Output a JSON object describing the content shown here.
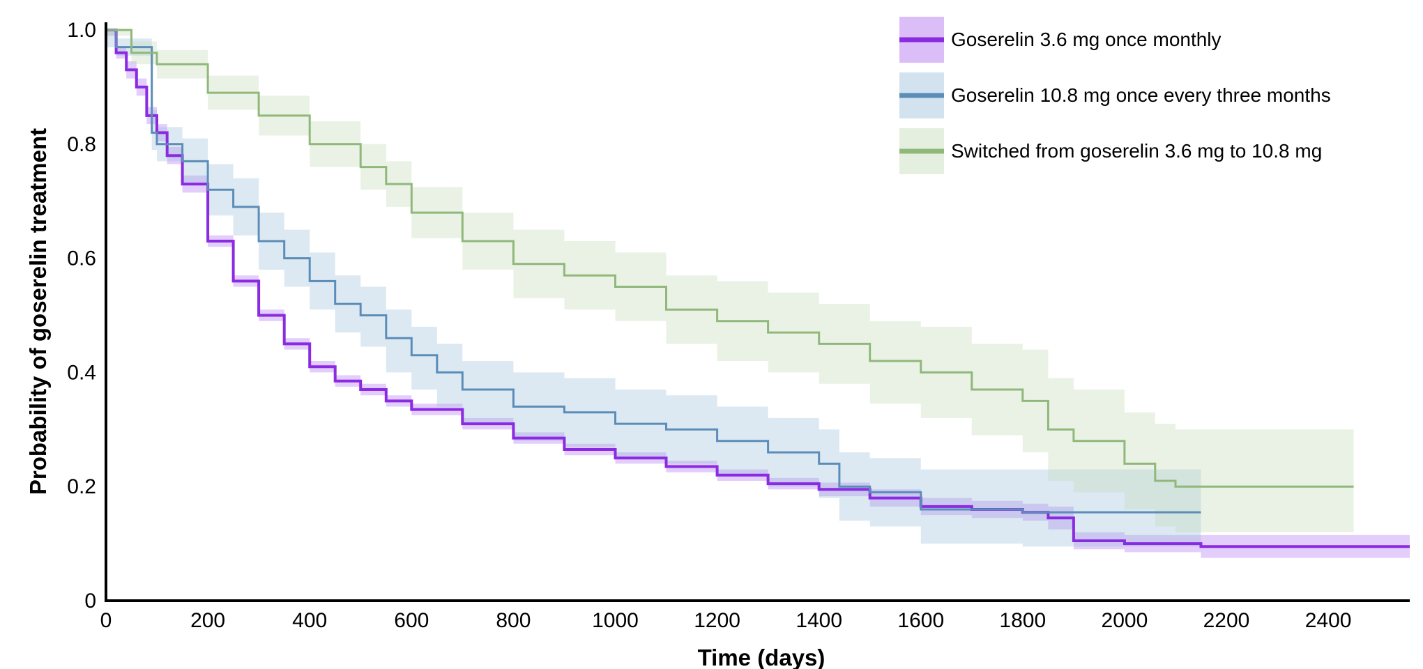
{
  "chart_data": {
    "type": "line",
    "title": "",
    "xlabel": "Time (days)",
    "ylabel": "Probability  of goserelin treatment",
    "xlim": [
      0,
      2560
    ],
    "ylim": [
      0,
      1.0
    ],
    "x_ticks": [
      "0",
      "200",
      "400",
      "600",
      "800",
      "1000",
      "1200",
      "1400",
      "1600",
      "1800",
      "2000",
      "2200",
      "2400"
    ],
    "y_ticks": [
      "0",
      "0.2",
      "0.4",
      "0.6",
      "0.8",
      "1.0"
    ],
    "grid": false,
    "legend_position": "top-right",
    "series": [
      {
        "name": "Goserelin 3.6 mg once monthly",
        "color": "#8a2be2",
        "band_color": "#b06ff0",
        "x": [
          0,
          20,
          40,
          60,
          80,
          100,
          120,
          150,
          200,
          250,
          300,
          350,
          400,
          450,
          500,
          550,
          600,
          700,
          800,
          900,
          1000,
          1100,
          1200,
          1300,
          1400,
          1500,
          1600,
          1700,
          1800,
          1850,
          1900,
          2000,
          2100,
          2150,
          2560
        ],
        "y": [
          1.0,
          0.96,
          0.93,
          0.9,
          0.85,
          0.82,
          0.78,
          0.73,
          0.63,
          0.56,
          0.5,
          0.45,
          0.41,
          0.385,
          0.37,
          0.35,
          0.335,
          0.31,
          0.285,
          0.265,
          0.25,
          0.235,
          0.22,
          0.205,
          0.195,
          0.18,
          0.165,
          0.16,
          0.155,
          0.145,
          0.105,
          0.1,
          0.1,
          0.095,
          0.095
        ],
        "lower": [
          0.99,
          0.95,
          0.915,
          0.885,
          0.835,
          0.805,
          0.765,
          0.715,
          0.62,
          0.55,
          0.49,
          0.44,
          0.4,
          0.375,
          0.36,
          0.34,
          0.325,
          0.3,
          0.275,
          0.255,
          0.24,
          0.225,
          0.21,
          0.195,
          0.183,
          0.165,
          0.15,
          0.145,
          0.14,
          0.125,
          0.09,
          0.085,
          0.085,
          0.075,
          0.075
        ],
        "upper": [
          1.0,
          0.97,
          0.945,
          0.915,
          0.865,
          0.835,
          0.795,
          0.745,
          0.64,
          0.57,
          0.51,
          0.46,
          0.42,
          0.395,
          0.38,
          0.36,
          0.345,
          0.32,
          0.295,
          0.275,
          0.26,
          0.245,
          0.23,
          0.215,
          0.207,
          0.195,
          0.18,
          0.175,
          0.17,
          0.165,
          0.12,
          0.115,
          0.115,
          0.115,
          0.115
        ]
      },
      {
        "name": "Goserelin 10.8 mg once every three months",
        "color": "#5b8db8",
        "band_color": "#9cbfdb",
        "x": [
          0,
          20,
          80,
          90,
          100,
          150,
          200,
          250,
          300,
          350,
          400,
          450,
          500,
          550,
          600,
          650,
          700,
          800,
          900,
          1000,
          1100,
          1200,
          1300,
          1400,
          1440,
          1500,
          1600,
          1700,
          1800,
          1900,
          2000,
          2100,
          2150
        ],
        "y": [
          1.0,
          0.97,
          0.97,
          0.82,
          0.8,
          0.77,
          0.72,
          0.69,
          0.63,
          0.6,
          0.56,
          0.52,
          0.5,
          0.46,
          0.43,
          0.4,
          0.37,
          0.34,
          0.33,
          0.31,
          0.3,
          0.28,
          0.26,
          0.24,
          0.2,
          0.19,
          0.16,
          0.16,
          0.155,
          0.155,
          0.155,
          0.155,
          0.155
        ],
        "lower": [
          0.97,
          0.955,
          0.955,
          0.79,
          0.77,
          0.73,
          0.675,
          0.64,
          0.58,
          0.55,
          0.51,
          0.47,
          0.445,
          0.4,
          0.37,
          0.34,
          0.31,
          0.28,
          0.27,
          0.25,
          0.24,
          0.22,
          0.2,
          0.18,
          0.14,
          0.13,
          0.1,
          0.1,
          0.095,
          0.095,
          0.095,
          0.095,
          0.095
        ],
        "upper": [
          1.0,
          0.985,
          0.985,
          0.86,
          0.83,
          0.81,
          0.765,
          0.74,
          0.68,
          0.65,
          0.61,
          0.57,
          0.55,
          0.51,
          0.48,
          0.45,
          0.42,
          0.4,
          0.39,
          0.37,
          0.36,
          0.34,
          0.32,
          0.3,
          0.26,
          0.25,
          0.23,
          0.23,
          0.23,
          0.23,
          0.23,
          0.23,
          0.23
        ]
      },
      {
        "name": "Switched from goserelin 3.6 mg to 10.8 mg",
        "color": "#8fb87a",
        "band_color": "#c4dbb7",
        "x": [
          0,
          50,
          100,
          200,
          300,
          400,
          500,
          550,
          600,
          700,
          800,
          900,
          1000,
          1100,
          1200,
          1300,
          1400,
          1500,
          1600,
          1700,
          1800,
          1850,
          1900,
          2000,
          2060,
          2100,
          2200,
          2300,
          2450
        ],
        "y": [
          1.0,
          0.96,
          0.94,
          0.89,
          0.85,
          0.8,
          0.76,
          0.73,
          0.68,
          0.63,
          0.59,
          0.57,
          0.55,
          0.51,
          0.49,
          0.47,
          0.45,
          0.42,
          0.4,
          0.37,
          0.35,
          0.3,
          0.28,
          0.24,
          0.21,
          0.2,
          0.2,
          0.2,
          0.2
        ],
        "lower": [
          0.99,
          0.94,
          0.915,
          0.86,
          0.815,
          0.76,
          0.72,
          0.69,
          0.635,
          0.58,
          0.53,
          0.51,
          0.49,
          0.45,
          0.42,
          0.4,
          0.38,
          0.345,
          0.32,
          0.29,
          0.26,
          0.21,
          0.19,
          0.16,
          0.13,
          0.12,
          0.12,
          0.12,
          0.12
        ],
        "upper": [
          1.0,
          0.98,
          0.965,
          0.92,
          0.885,
          0.84,
          0.8,
          0.77,
          0.725,
          0.68,
          0.65,
          0.63,
          0.61,
          0.57,
          0.56,
          0.54,
          0.52,
          0.49,
          0.48,
          0.45,
          0.44,
          0.39,
          0.37,
          0.33,
          0.31,
          0.3,
          0.3,
          0.3,
          0.3
        ]
      }
    ]
  }
}
